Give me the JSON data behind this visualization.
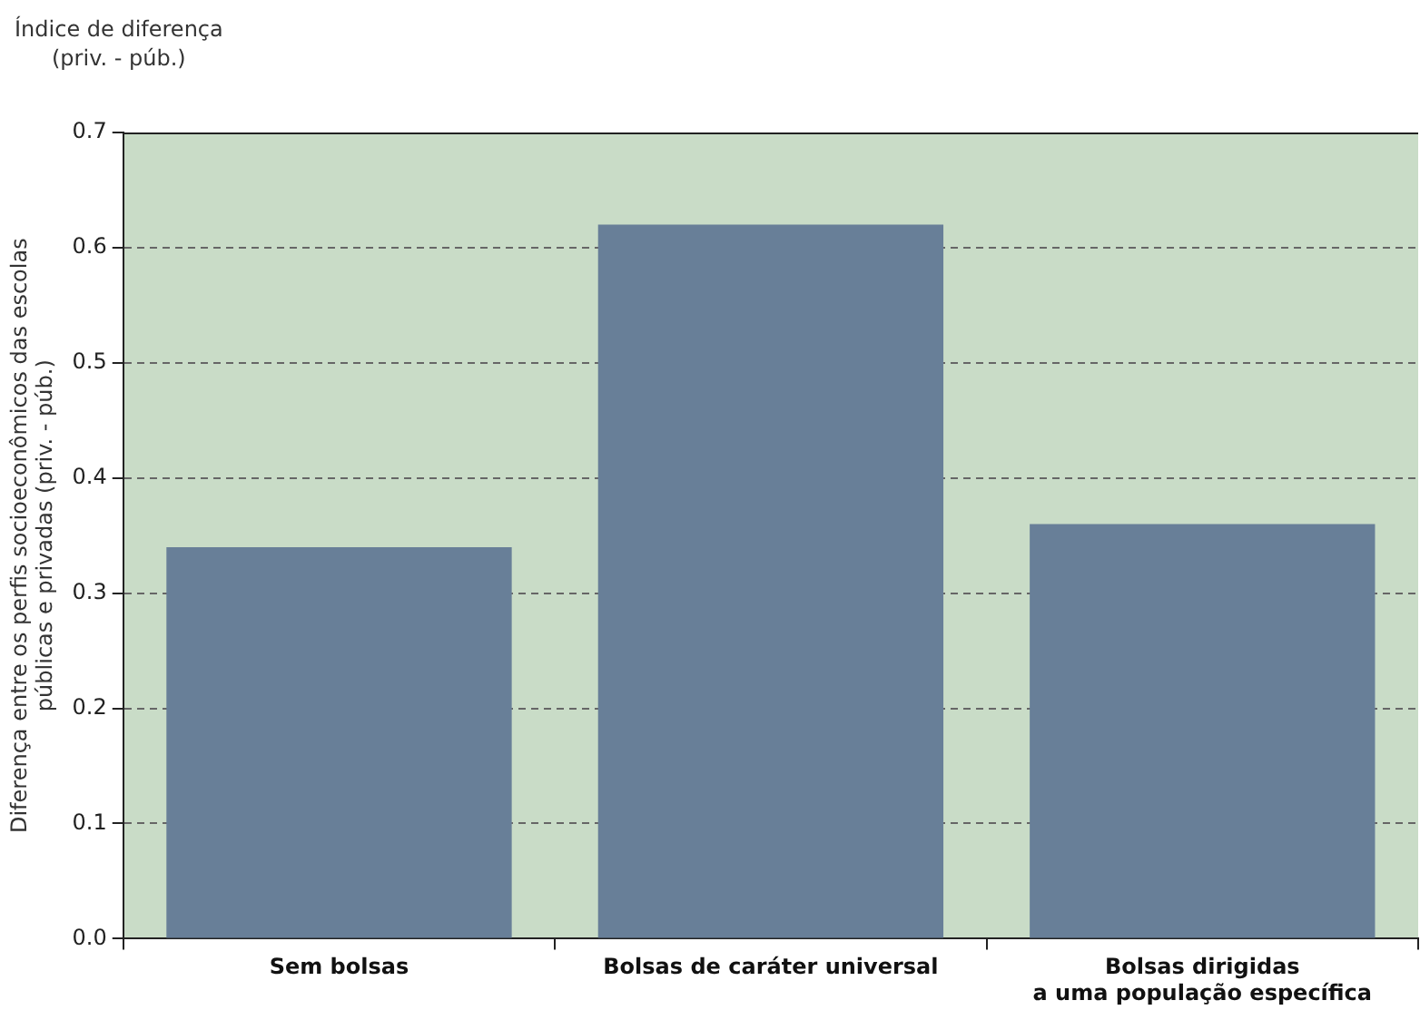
{
  "chart_data": {
    "type": "bar",
    "title": "Índice de diferença\n(priv. - púb.)",
    "ylabel": "Diferença entre os perfis socioeconômicos das escolas\npúblicas e privadas (priv. - púb.)",
    "categories": [
      "Sem bolsas",
      "Bolsas de caráter universal",
      "Bolsas dirigidas\na uma população específica"
    ],
    "values": [
      0.34,
      0.62,
      0.36
    ],
    "color": "#687f98",
    "ylim": [
      0,
      0.7
    ],
    "yticks": [
      {
        "value": 0,
        "label": "0.0"
      },
      0.1,
      0.2,
      0.3,
      0.4,
      0.5,
      0.6,
      0.7
    ],
    "grid": "y",
    "legend": false
  }
}
